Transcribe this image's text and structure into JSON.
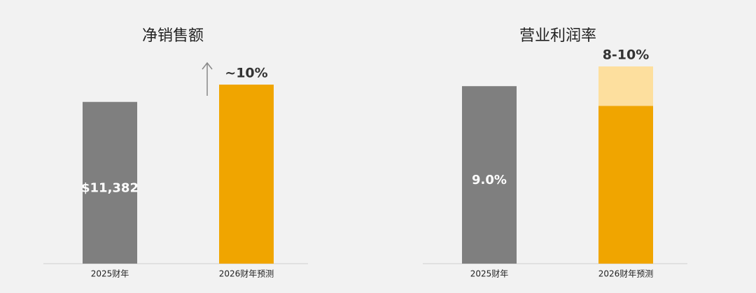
{
  "chart_data": [
    {
      "type": "bar",
      "title": "净销售额",
      "categories": [
        "2025财年",
        "2026财年预测"
      ],
      "series": [
        {
          "colors": [
            "#7f7f7f",
            "#f0a500"
          ],
          "values": [
            11382,
            12600
          ],
          "value_labels": [
            "$11,382",
            null
          ]
        }
      ],
      "annotation": "~10%"
    },
    {
      "type": "bar",
      "title": "营业利润率",
      "categories": [
        "2025财年",
        "2026财年预测"
      ],
      "series": [
        {
          "colors": [
            "#7f7f7f",
            "#f0a500"
          ],
          "values": [
            9.0,
            8
          ],
          "value_labels": [
            "9.0%",
            null
          ]
        },
        {
          "color": "#fddf9e",
          "values": [
            null,
            2
          ]
        }
      ],
      "annotation": "8-10%"
    }
  ]
}
